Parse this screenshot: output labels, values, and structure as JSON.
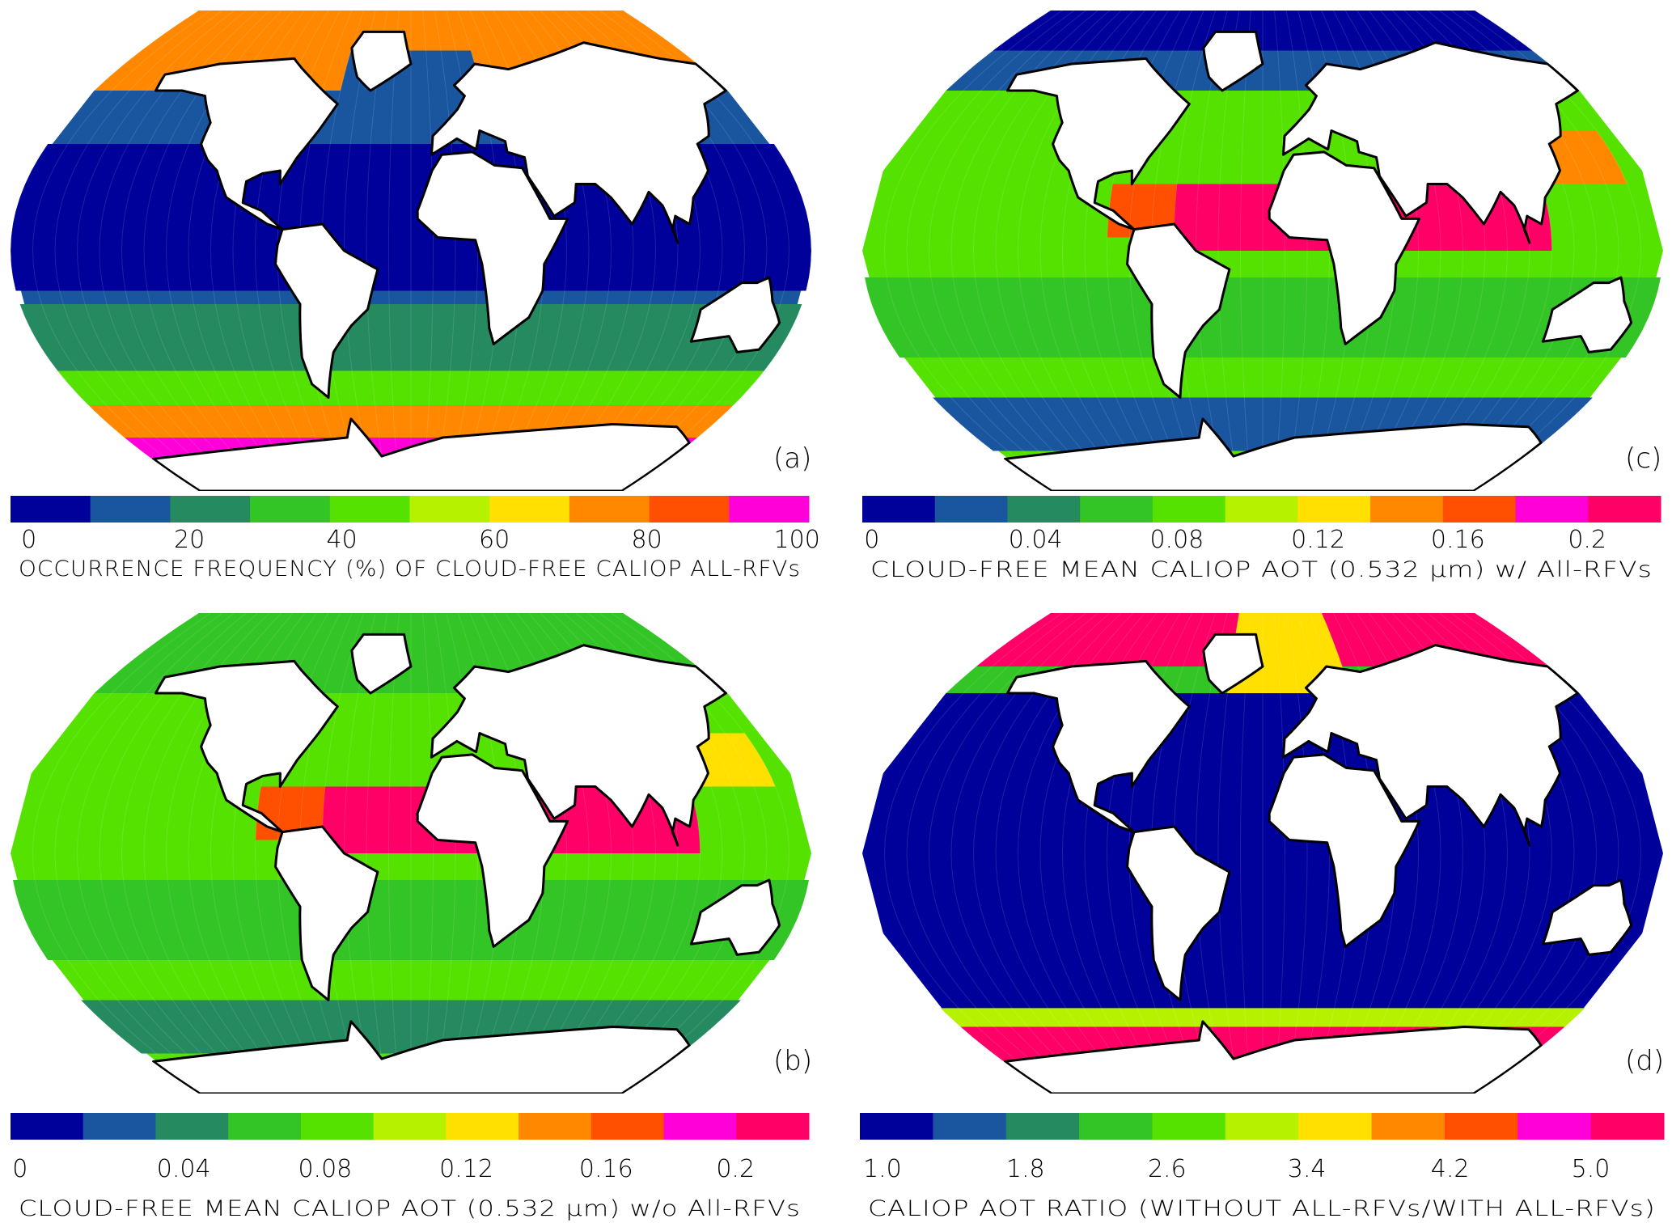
{
  "palette": [
    "#00009b",
    "#1a55a0",
    "#258a60",
    "#33c425",
    "#55e200",
    "#b6f200",
    "#ffe000",
    "#ff8800",
    "#ff4f00",
    "#ff00d8",
    "#ff0066"
  ],
  "chart_data": [
    {
      "type": "heatmap",
      "panel_label": "(a)",
      "map": "global map, oceans colored, land white",
      "colorbar": {
        "n_colors": 10,
        "ticks": [
          "0",
          "20",
          "40",
          "60",
          "80",
          "100"
        ],
        "title": "OCCURRENCE FREQUENCY (%) OF CLOUD-FREE CALIOP ALL-RFVs",
        "range": [
          0,
          100
        ]
      }
    },
    {
      "type": "heatmap",
      "panel_label": "(b)",
      "map": "global map, oceans colored, land white",
      "colorbar": {
        "n_colors": 11,
        "ticks": [
          "0",
          "0.04",
          "0.08",
          "0.12",
          "0.16",
          "0.2"
        ],
        "title": "CLOUD-FREE MEAN CALIOP AOT (0.532 µm) w/o All-RFVs",
        "range": [
          0,
          0.22
        ]
      }
    },
    {
      "type": "heatmap",
      "panel_label": "(c)",
      "map": "global map, oceans colored, land white",
      "colorbar": {
        "n_colors": 11,
        "ticks": [
          "0",
          "0.04",
          "0.08",
          "0.12",
          "0.16",
          "0.2"
        ],
        "title": "CLOUD-FREE MEAN CALIOP AOT (0.532 µm) w/ All-RFVs",
        "range": [
          0,
          0.22
        ]
      }
    },
    {
      "type": "heatmap",
      "panel_label": "(d)",
      "map": "global map, oceans colored, land white",
      "colorbar": {
        "n_colors": 11,
        "ticks": [
          "1.0",
          "1.8",
          "2.6",
          "3.4",
          "4.2",
          "5.0"
        ],
        "title": "CALIOP AOT RATIO (WITHOUT ALL-RFVs/WITH ALL-RFVs)",
        "range": [
          1.0,
          5.4
        ]
      }
    }
  ]
}
